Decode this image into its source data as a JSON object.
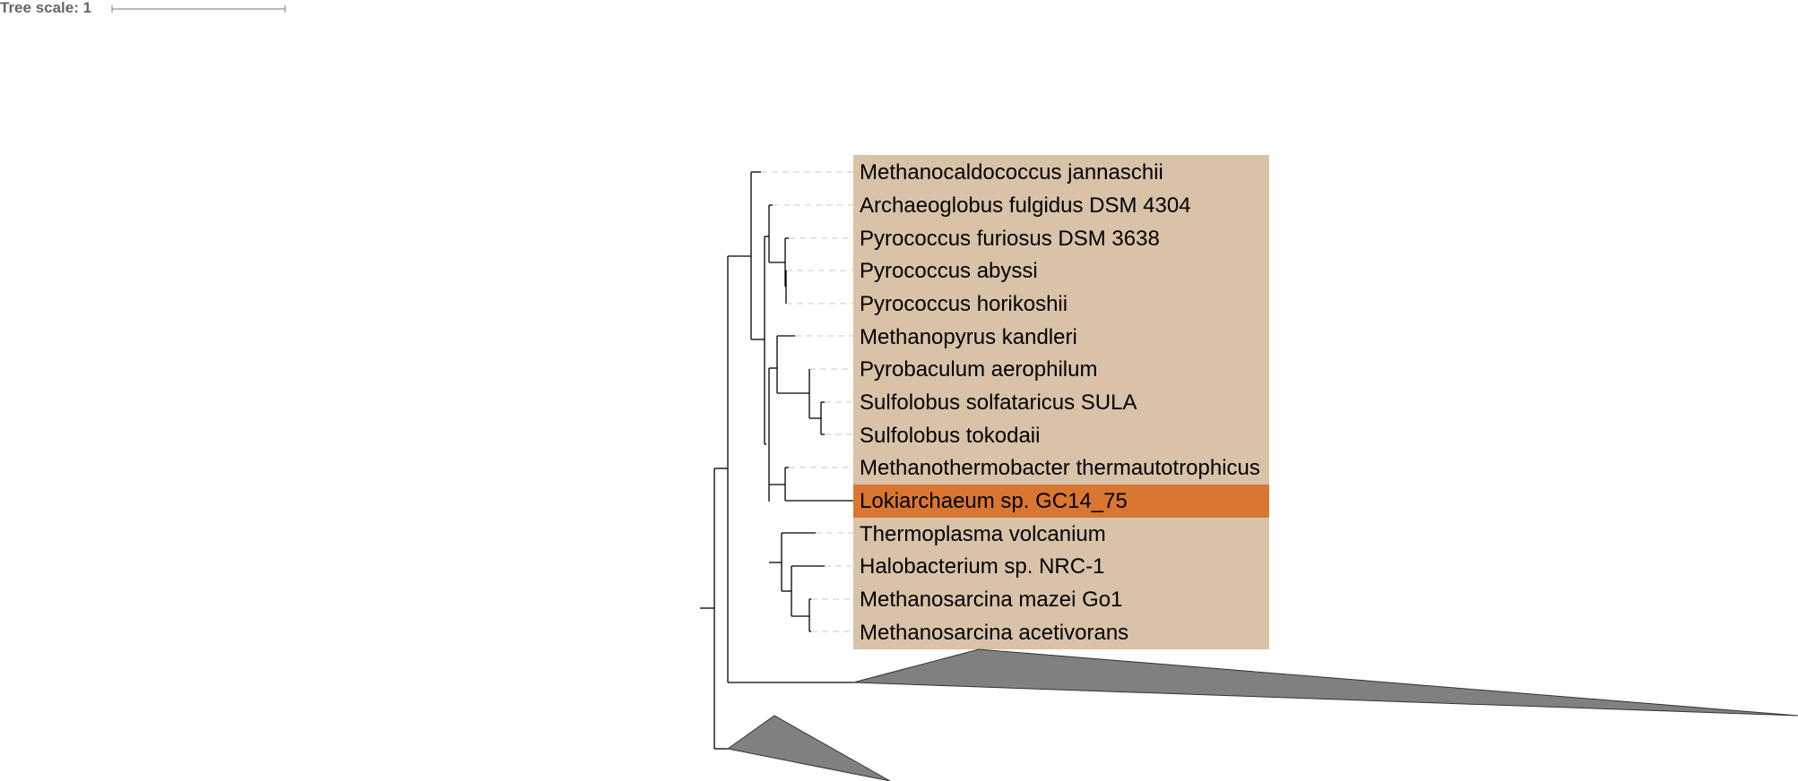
{
  "tree_scale": {
    "label": "Tree scale: 1",
    "value": 1
  },
  "colors": {
    "clade_band": "#d8c2a8",
    "highlight": "#d97732",
    "branch": "#000000",
    "collapsed_clade": "#808080",
    "dashed_connector": "#c8c8c8",
    "scale_text": "#666666"
  },
  "leaves": [
    {
      "name": "Methanocaldococcus jannaschii",
      "highlighted": false
    },
    {
      "name": "Archaeoglobus fulgidus DSM 4304",
      "highlighted": false
    },
    {
      "name": "Pyrococcus furiosus DSM 3638",
      "highlighted": false
    },
    {
      "name": "Pyrococcus abyssi",
      "highlighted": false
    },
    {
      "name": "Pyrococcus horikoshii",
      "highlighted": false
    },
    {
      "name": "Methanopyrus kandleri",
      "highlighted": false
    },
    {
      "name": "Pyrobaculum aerophilum",
      "highlighted": false
    },
    {
      "name": "Sulfolobus solfataricus SULA",
      "highlighted": false
    },
    {
      "name": "Sulfolobus tokodaii",
      "highlighted": false
    },
    {
      "name": "Methanothermobacter thermautotrophicus",
      "highlighted": false
    },
    {
      "name": "Lokiarchaeum sp. GC14_75",
      "highlighted": true
    },
    {
      "name": "Thermoplasma volcanium",
      "highlighted": false
    },
    {
      "name": "Halobacterium sp. NRC-1",
      "highlighted": false
    },
    {
      "name": "Methanosarcina mazei Go1",
      "highlighted": false
    },
    {
      "name": "Methanosarcina acetivorans",
      "highlighted": false
    }
  ],
  "collapsed_clades": 2
}
